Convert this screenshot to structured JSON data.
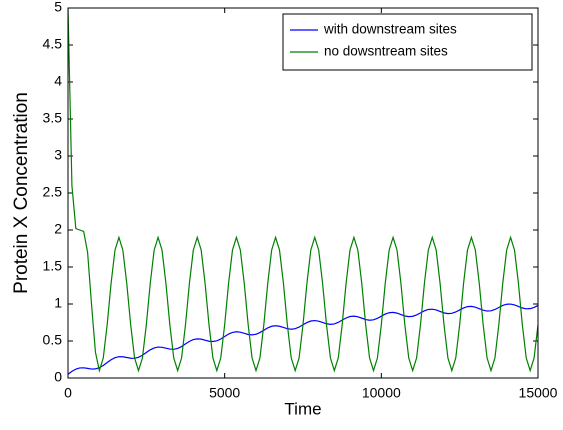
{
  "chart_data": {
    "type": "line",
    "xlabel": "Time",
    "ylabel": "Protein X  Concentration",
    "x": [
      0,
      125,
      250,
      375,
      500,
      625,
      750,
      875,
      1000,
      1125,
      1250,
      1375,
      1500,
      1625,
      1750,
      1875,
      2000,
      2125,
      2250,
      2375,
      2500,
      2625,
      2750,
      2875,
      3000,
      3125,
      3250,
      3375,
      3500,
      3625,
      3750,
      3875,
      4000,
      4125,
      4250,
      4375,
      4500,
      4625,
      4750,
      4875,
      5000,
      5125,
      5250,
      5375,
      5500,
      5625,
      5750,
      5875,
      6000,
      6125,
      6250,
      6375,
      6500,
      6625,
      6750,
      6875,
      7000,
      7125,
      7250,
      7375,
      7500,
      7625,
      7750,
      7875,
      8000,
      8125,
      8250,
      8375,
      8500,
      8625,
      8750,
      8875,
      9000,
      9125,
      9250,
      9375,
      9500,
      9625,
      9750,
      9875,
      10000,
      10125,
      10250,
      10375,
      10500,
      10625,
      10750,
      10875,
      11000,
      11125,
      11250,
      11375,
      11500,
      11625,
      11750,
      11875,
      12000,
      12125,
      12250,
      12375,
      12500,
      12625,
      12750,
      12875,
      13000,
      13125,
      13250,
      13375,
      13500,
      13625,
      13750,
      13875,
      14000,
      14125,
      14250,
      14375,
      14500,
      14625,
      14750,
      14875,
      15000
    ],
    "series": [
      {
        "name": "with downstream sites",
        "color": "#0000ff",
        "values": [
          0.05,
          0.09,
          0.12,
          0.136,
          0.138,
          0.13,
          0.121,
          0.123,
          0.139,
          0.169,
          0.209,
          0.247,
          0.274,
          0.288,
          0.287,
          0.277,
          0.267,
          0.266,
          0.28,
          0.307,
          0.345,
          0.381,
          0.406,
          0.418,
          0.415,
          0.403,
          0.391,
          0.388,
          0.4,
          0.425,
          0.461,
          0.495,
          0.519,
          0.529,
          0.525,
          0.511,
          0.497,
          0.493,
          0.503,
          0.527,
          0.561,
          0.594,
          0.616,
          0.625,
          0.619,
          0.604,
          0.588,
          0.583,
          0.591,
          0.614,
          0.646,
          0.677,
          0.699,
          0.706,
          0.699,
          0.683,
          0.666,
          0.659,
          0.666,
          0.688,
          0.719,
          0.749,
          0.77,
          0.776,
          0.768,
          0.751,
          0.733,
          0.725,
          0.731,
          0.752,
          0.782,
          0.811,
          0.831,
          0.836,
          0.827,
          0.809,
          0.79,
          0.781,
          0.786,
          0.806,
          0.835,
          0.864,
          0.882,
          0.887,
          0.877,
          0.858,
          0.838,
          0.829,
          0.833,
          0.852,
          0.88,
          0.908,
          0.926,
          0.93,
          0.92,
          0.9,
          0.88,
          0.87,
          0.874,
          0.892,
          0.92,
          0.947,
          0.965,
          0.968,
          0.957,
          0.937,
          0.916,
          0.905,
          0.908,
          0.926,
          0.953,
          0.98,
          0.997,
          0.999,
          0.988,
          0.967,
          0.946,
          0.935,
          0.937,
          0.954,
          0.981
        ]
      },
      {
        "name": "no dowsntream sites",
        "color": "#008000",
        "values": [
          5,
          2.6,
          2.02,
          2.0,
          1.98,
          1.7,
          1.0,
          0.35,
          0.1,
          0.27,
          0.72,
          1.28,
          1.73,
          1.9,
          1.73,
          1.28,
          0.72,
          0.27,
          0.1,
          0.27,
          0.72,
          1.28,
          1.73,
          1.9,
          1.73,
          1.28,
          0.72,
          0.27,
          0.1,
          0.27,
          0.72,
          1.28,
          1.73,
          1.9,
          1.73,
          1.28,
          0.72,
          0.27,
          0.1,
          0.27,
          0.72,
          1.28,
          1.73,
          1.9,
          1.73,
          1.28,
          0.72,
          0.27,
          0.1,
          0.27,
          0.72,
          1.28,
          1.73,
          1.9,
          1.73,
          1.28,
          0.72,
          0.27,
          0.1,
          0.27,
          0.72,
          1.28,
          1.73,
          1.9,
          1.73,
          1.28,
          0.72,
          0.27,
          0.1,
          0.27,
          0.72,
          1.28,
          1.73,
          1.9,
          1.73,
          1.28,
          0.72,
          0.27,
          0.1,
          0.27,
          0.72,
          1.28,
          1.73,
          1.9,
          1.73,
          1.28,
          0.72,
          0.27,
          0.1,
          0.27,
          0.72,
          1.28,
          1.73,
          1.9,
          1.73,
          1.28,
          0.72,
          0.27,
          0.1,
          0.27,
          0.72,
          1.28,
          1.73,
          1.9,
          1.73,
          1.28,
          0.72,
          0.27,
          0.1,
          0.27,
          0.72,
          1.28,
          1.73,
          1.9,
          1.73,
          1.28,
          0.72,
          0.27,
          0.1,
          0.27,
          0.72
        ]
      }
    ],
    "xlim": [
      0,
      15000
    ],
    "xticks": [
      0,
      5000,
      10000,
      15000
    ],
    "ylim": [
      0,
      5
    ],
    "yticks": [
      0,
      0.5,
      1,
      1.5,
      2,
      2.5,
      3,
      3.5,
      4,
      4.5,
      5
    ],
    "grid": false,
    "legend": "upper right"
  }
}
